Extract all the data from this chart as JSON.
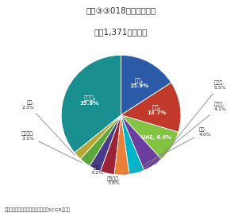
{
  "title": "図表③③018年国別輸入額",
  "subtitle": "（絆1,371億ドル）",
  "footer": "（出所：サウジアラビア通貨庁よりSCGR作成）",
  "values": [
    15.9,
    13.7,
    8.6,
    5.5,
    4.1,
    4.0,
    3.8,
    3.2,
    3.1,
    2.3,
    35.8
  ],
  "colors": [
    "#2b5ba8",
    "#c1392b",
    "#82c341",
    "#6a3d9e",
    "#00b4cc",
    "#e8803a",
    "#9b2335",
    "#4a3a8a",
    "#5ba83a",
    "#b8a832",
    "#1a8f8f"
  ],
  "label_names": [
    "中国",
    "米国",
    "UAE",
    "ドイツ",
    "インド",
    "日本",
    "フランス",
    "韓国",
    "イタリア",
    "英国",
    "その他"
  ],
  "label_pcts": [
    "15.9%",
    "13.7%",
    "8.6%",
    "5.5%",
    "4.1%",
    "4.0%",
    "3.8%",
    "3.2%",
    "3.1%",
    "2.3%",
    "35.8%"
  ]
}
